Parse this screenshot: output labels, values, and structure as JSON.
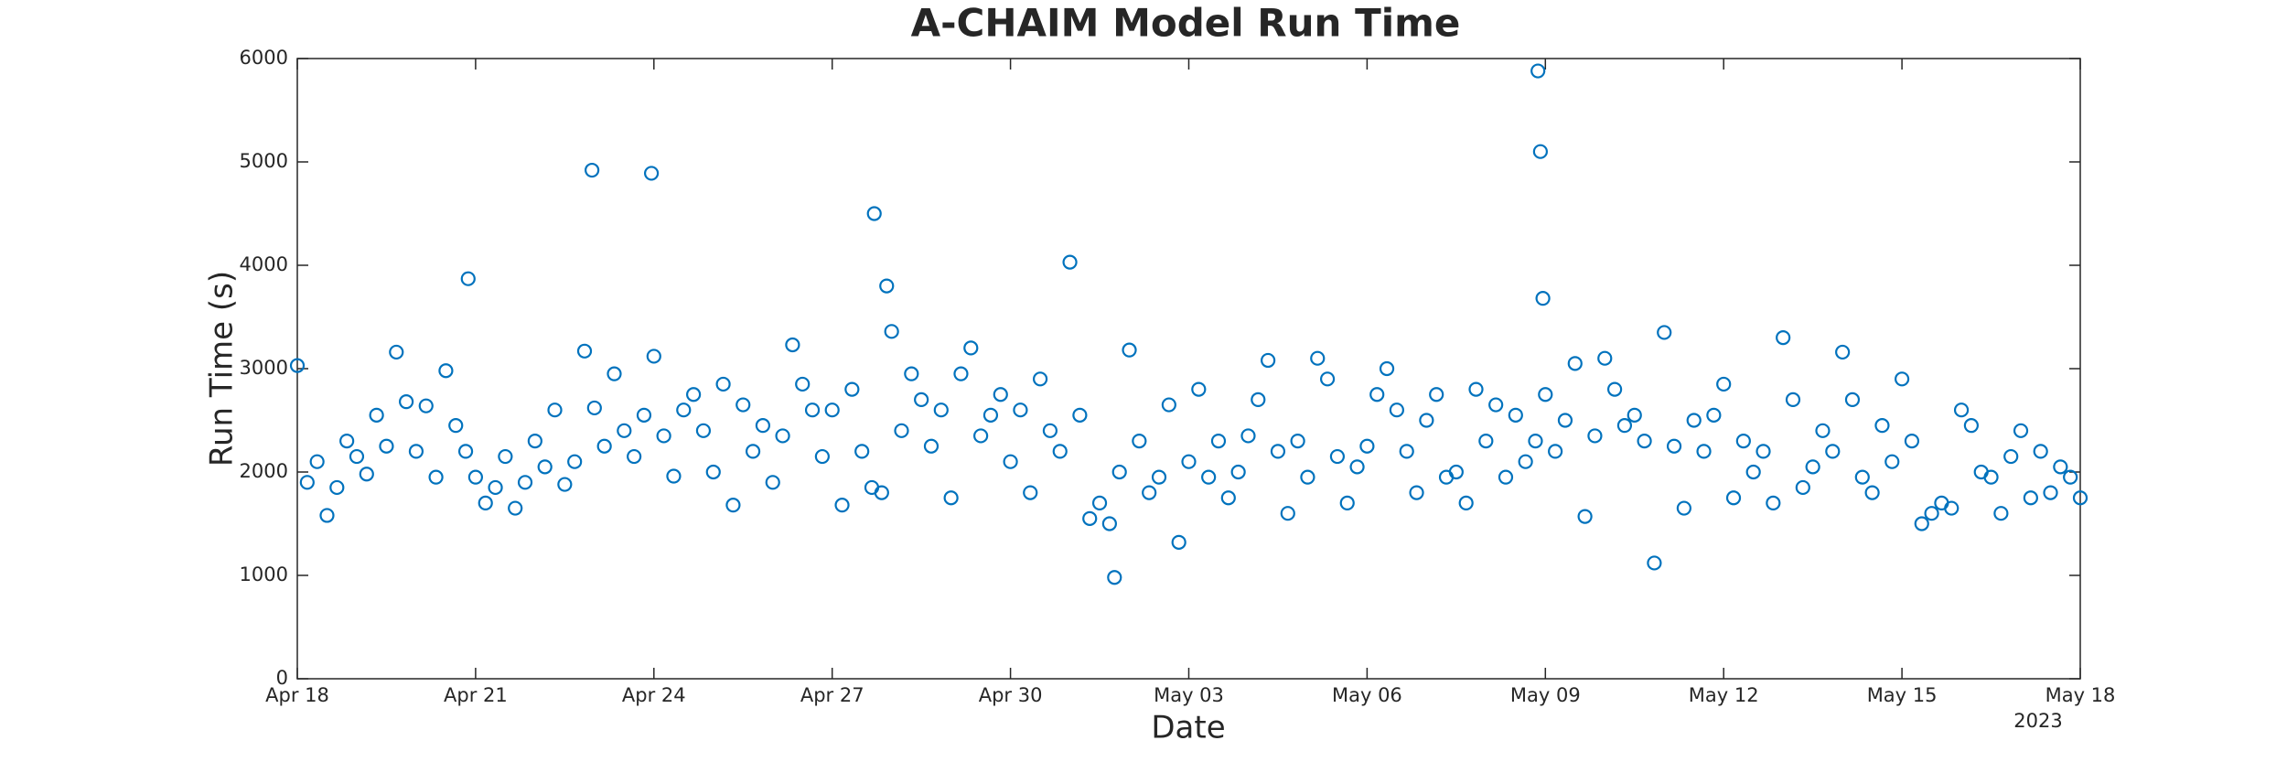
{
  "chart_data": {
    "type": "scatter",
    "title": "A-CHAIM Model Run Time",
    "x_label": "Date",
    "y_label": "Run Time (s)",
    "xlim": [
      "2023-04-18T00:00",
      "2023-05-18T00:00"
    ],
    "xticks": [
      {
        "value": "2023-04-18T00:00",
        "label": "Apr 18"
      },
      {
        "value": "2023-04-21T00:00",
        "label": "Apr 21"
      },
      {
        "value": "2023-04-24T00:00",
        "label": "Apr 24"
      },
      {
        "value": "2023-04-27T00:00",
        "label": "Apr 27"
      },
      {
        "value": "2023-04-30T00:00",
        "label": "Apr 30"
      },
      {
        "value": "2023-05-03T00:00",
        "label": "May 03"
      },
      {
        "value": "2023-05-06T00:00",
        "label": "May 06"
      },
      {
        "value": "2023-05-09T00:00",
        "label": "May 09"
      },
      {
        "value": "2023-05-12T00:00",
        "label": "May 12"
      },
      {
        "value": "2023-05-15T00:00",
        "label": "May 15"
      },
      {
        "value": "2023-05-18T00:00",
        "label": "May 18"
      }
    ],
    "x_year_label": "2023",
    "ylim": [
      0,
      6000
    ],
    "yticks": [
      0,
      1000,
      2000,
      3000,
      4000,
      5000,
      6000
    ],
    "grid": false,
    "color": "#0072bd",
    "marker": "open-circle",
    "x": [
      "2023-04-18T00:00",
      "2023-04-18T04:00",
      "2023-04-18T08:00",
      "2023-04-18T12:00",
      "2023-04-18T16:00",
      "2023-04-18T20:00",
      "2023-04-19T00:00",
      "2023-04-19T04:00",
      "2023-04-19T08:00",
      "2023-04-19T12:00",
      "2023-04-19T16:00",
      "2023-04-19T20:00",
      "2023-04-20T00:00",
      "2023-04-20T04:00",
      "2023-04-20T08:00",
      "2023-04-20T12:00",
      "2023-04-20T16:00",
      "2023-04-20T20:00",
      "2023-04-20T21:00",
      "2023-04-21T00:00",
      "2023-04-21T04:00",
      "2023-04-21T08:00",
      "2023-04-21T12:00",
      "2023-04-21T16:00",
      "2023-04-21T20:00",
      "2023-04-22T00:00",
      "2023-04-22T04:00",
      "2023-04-22T08:00",
      "2023-04-22T12:00",
      "2023-04-22T16:00",
      "2023-04-22T20:00",
      "2023-04-22T23:00",
      "2023-04-23T00:00",
      "2023-04-23T04:00",
      "2023-04-23T08:00",
      "2023-04-23T12:00",
      "2023-04-23T16:00",
      "2023-04-23T20:00",
      "2023-04-23T23:00",
      "2023-04-24T00:00",
      "2023-04-24T04:00",
      "2023-04-24T08:00",
      "2023-04-24T12:00",
      "2023-04-24T16:00",
      "2023-04-24T20:00",
      "2023-04-25T00:00",
      "2023-04-25T04:00",
      "2023-04-25T08:00",
      "2023-04-25T12:00",
      "2023-04-25T16:00",
      "2023-04-25T20:00",
      "2023-04-26T00:00",
      "2023-04-26T04:00",
      "2023-04-26T08:00",
      "2023-04-26T12:00",
      "2023-04-26T16:00",
      "2023-04-26T20:00",
      "2023-04-27T00:00",
      "2023-04-27T04:00",
      "2023-04-27T08:00",
      "2023-04-27T12:00",
      "2023-04-27T16:00",
      "2023-04-27T17:00",
      "2023-04-27T20:00",
      "2023-04-27T22:00",
      "2023-04-28T00:00",
      "2023-04-28T04:00",
      "2023-04-28T08:00",
      "2023-04-28T12:00",
      "2023-04-28T16:00",
      "2023-04-28T20:00",
      "2023-04-29T00:00",
      "2023-04-29T04:00",
      "2023-04-29T08:00",
      "2023-04-29T12:00",
      "2023-04-29T16:00",
      "2023-04-29T20:00",
      "2023-04-30T00:00",
      "2023-04-30T04:00",
      "2023-04-30T08:00",
      "2023-04-30T12:00",
      "2023-04-30T16:00",
      "2023-04-30T20:00",
      "2023-05-01T00:00",
      "2023-05-01T04:00",
      "2023-05-01T08:00",
      "2023-05-01T12:00",
      "2023-05-01T16:00",
      "2023-05-01T18:00",
      "2023-05-01T20:00",
      "2023-05-02T00:00",
      "2023-05-02T04:00",
      "2023-05-02T08:00",
      "2023-05-02T12:00",
      "2023-05-02T16:00",
      "2023-05-02T20:00",
      "2023-05-03T00:00",
      "2023-05-03T04:00",
      "2023-05-03T08:00",
      "2023-05-03T12:00",
      "2023-05-03T16:00",
      "2023-05-03T20:00",
      "2023-05-04T00:00",
      "2023-05-04T04:00",
      "2023-05-04T08:00",
      "2023-05-04T12:00",
      "2023-05-04T16:00",
      "2023-05-04T20:00",
      "2023-05-05T00:00",
      "2023-05-05T04:00",
      "2023-05-05T08:00",
      "2023-05-05T12:00",
      "2023-05-05T16:00",
      "2023-05-05T20:00",
      "2023-05-06T00:00",
      "2023-05-06T04:00",
      "2023-05-06T08:00",
      "2023-05-06T12:00",
      "2023-05-06T16:00",
      "2023-05-06T20:00",
      "2023-05-07T00:00",
      "2023-05-07T04:00",
      "2023-05-07T08:00",
      "2023-05-07T12:00",
      "2023-05-07T16:00",
      "2023-05-07T20:00",
      "2023-05-08T00:00",
      "2023-05-08T04:00",
      "2023-05-08T08:00",
      "2023-05-08T12:00",
      "2023-05-08T16:00",
      "2023-05-08T20:00",
      "2023-05-08T21:00",
      "2023-05-08T22:00",
      "2023-05-08T23:00",
      "2023-05-09T00:00",
      "2023-05-09T04:00",
      "2023-05-09T08:00",
      "2023-05-09T12:00",
      "2023-05-09T16:00",
      "2023-05-09T20:00",
      "2023-05-10T00:00",
      "2023-05-10T04:00",
      "2023-05-10T08:00",
      "2023-05-10T12:00",
      "2023-05-10T16:00",
      "2023-05-10T20:00",
      "2023-05-11T00:00",
      "2023-05-11T04:00",
      "2023-05-11T08:00",
      "2023-05-11T12:00",
      "2023-05-11T16:00",
      "2023-05-11T20:00",
      "2023-05-12T00:00",
      "2023-05-12T04:00",
      "2023-05-12T08:00",
      "2023-05-12T12:00",
      "2023-05-12T16:00",
      "2023-05-12T20:00",
      "2023-05-13T00:00",
      "2023-05-13T04:00",
      "2023-05-13T08:00",
      "2023-05-13T12:00",
      "2023-05-13T16:00",
      "2023-05-13T20:00",
      "2023-05-14T00:00",
      "2023-05-14T04:00",
      "2023-05-14T08:00",
      "2023-05-14T12:00",
      "2023-05-14T16:00",
      "2023-05-14T20:00",
      "2023-05-15T00:00",
      "2023-05-15T04:00",
      "2023-05-15T08:00",
      "2023-05-15T12:00",
      "2023-05-15T16:00",
      "2023-05-15T20:00",
      "2023-05-16T00:00",
      "2023-05-16T04:00",
      "2023-05-16T08:00",
      "2023-05-16T12:00",
      "2023-05-16T16:00",
      "2023-05-16T20:00",
      "2023-05-17T00:00",
      "2023-05-17T04:00",
      "2023-05-17T08:00",
      "2023-05-17T12:00",
      "2023-05-17T16:00",
      "2023-05-17T20:00",
      "2023-05-18T00:00"
    ],
    "values": [
      3030,
      1900,
      2100,
      1580,
      1850,
      2300,
      2150,
      1980,
      2550,
      2250,
      3160,
      2680,
      2200,
      2640,
      1950,
      2980,
      2450,
      2200,
      3870,
      1950,
      1700,
      1850,
      2150,
      1650,
      1900,
      2300,
      2050,
      2600,
      1880,
      2100,
      3170,
      4920,
      2620,
      2250,
      2950,
      2400,
      2150,
      2550,
      4890,
      3120,
      2350,
      1960,
      2600,
      2750,
      2400,
      2000,
      2850,
      1680,
      2650,
      2200,
      2450,
      1900,
      2350,
      3230,
      2850,
      2600,
      2150,
      2600,
      1680,
      2800,
      2200,
      1850,
      4500,
      1800,
      3800,
      3360,
      2400,
      2950,
      2700,
      2250,
      2600,
      1750,
      2950,
      3200,
      2350,
      2550,
      2750,
      2100,
      2600,
      1800,
      2900,
      2400,
      2200,
      4030,
      2550,
      1550,
      1700,
      1500,
      980,
      2000,
      3180,
      2300,
      1800,
      1950,
      2650,
      1320,
      2100,
      2800,
      1950,
      2300,
      1750,
      2000,
      2350,
      2700,
      3080,
      2200,
      1600,
      2300,
      1950,
      3100,
      2900,
      2150,
      1700,
      2050,
      2250,
      2750,
      3000,
      2600,
      2200,
      1800,
      2500,
      2750,
      1950,
      2000,
      1700,
      2800,
      2300,
      2650,
      1950,
      2550,
      2100,
      2300,
      5880,
      5100,
      3680,
      2750,
      2200,
      2500,
      3050,
      1570,
      2350,
      3100,
      2800,
      2450,
      2550,
      2300,
      1120,
      3350,
      2250,
      1650,
      2500,
      2200,
      2550,
      2850,
      1750,
      2300,
      2000,
      2200,
      1700,
      3300,
      2700,
      1850,
      2050,
      2400,
      2200,
      3160,
      2700,
      1950,
      1800,
      2450,
      2100,
      2900,
      2300,
      1500,
      1600,
      1700,
      1650,
      2600,
      2450,
      2000,
      1950,
      1600,
      2150,
      2400,
      1750,
      2200,
      1800,
      2050,
      1950,
      1750
    ]
  }
}
